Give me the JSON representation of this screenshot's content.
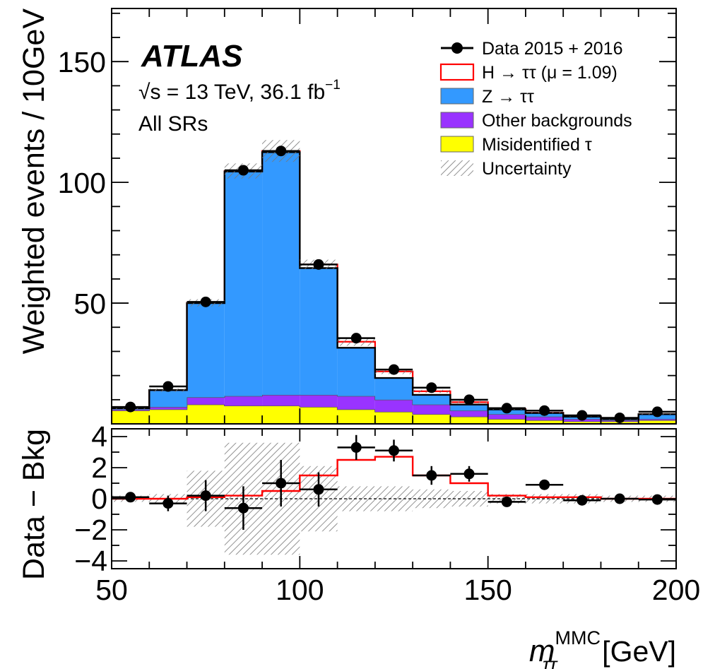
{
  "chart_data": [
    {
      "type": "bar",
      "stacked": true,
      "panel": "main",
      "bin_edges": [
        50,
        60,
        70,
        80,
        90,
        100,
        110,
        120,
        130,
        140,
        150,
        160,
        170,
        180,
        190,
        200
      ],
      "series": [
        {
          "name": "Misidentified τ",
          "color": "#ffff00",
          "values": [
            5.5,
            6.0,
            8.0,
            7.5,
            7.5,
            7.0,
            6.0,
            5.0,
            4.0,
            3.0,
            2.0,
            1.5,
            1.0,
            1.0,
            1.5
          ]
        },
        {
          "name": "Other backgrounds",
          "color": "#9933ff",
          "values": [
            0.5,
            1.0,
            3.0,
            4.0,
            4.5,
            5.0,
            5.5,
            5.0,
            4.0,
            2.5,
            2.0,
            1.5,
            1.0,
            0.5,
            0.5
          ]
        },
        {
          "name": "Z → ττ",
          "color": "#3399ff",
          "values": [
            0.5,
            7.0,
            39.0,
            93.0,
            100.5,
            52.5,
            20.0,
            9.0,
            4.0,
            2.5,
            2.0,
            1.5,
            1.0,
            0.5,
            2.0
          ]
        },
        {
          "name": "H → ττ (μ = 1.09)",
          "color": "#ff0000",
          "style": "outline",
          "values": [
            0.0,
            0.0,
            0.1,
            0.2,
            0.5,
            1.5,
            2.5,
            2.7,
            1.5,
            1.0,
            0.2,
            0.1,
            0.1,
            0.0,
            0.0
          ]
        }
      ],
      "data_series": {
        "name": "Data 2015 + 2016",
        "x": [
          55,
          65,
          75,
          85,
          95,
          105,
          115,
          125,
          135,
          145,
          155,
          165,
          175,
          185,
          195
        ],
        "y": [
          7.0,
          15.5,
          50.5,
          105.0,
          113.0,
          66.0,
          35.5,
          22.5,
          15.0,
          10.0,
          6.5,
          5.5,
          3.5,
          2.5,
          5.0
        ]
      },
      "uncertainty": {
        "name": "Uncertainty",
        "rel": [
          0.05,
          0.05,
          0.03,
          0.03,
          0.04,
          0.03,
          0.05,
          0.05,
          0.05,
          0.05,
          0.05,
          0.05,
          0.05,
          0.05,
          0.05
        ]
      },
      "ylabel": "Weighted events / 10GeV",
      "xlim": [
        50,
        200
      ],
      "ylim": [
        0,
        172
      ],
      "yticks": [
        50,
        100,
        150
      ],
      "legend_position": "top-right"
    },
    {
      "type": "line",
      "panel": "ratio",
      "bin_edges": [
        50,
        60,
        70,
        80,
        90,
        100,
        110,
        120,
        130,
        140,
        150,
        160,
        170,
        180,
        190,
        200
      ],
      "signal": {
        "name": "H → ττ (μ = 1.09)",
        "color": "#ff0000",
        "values": [
          0.0,
          0.0,
          0.1,
          0.2,
          0.5,
          1.5,
          2.5,
          2.7,
          1.5,
          1.0,
          0.2,
          0.1,
          0.1,
          0.0,
          0.0
        ]
      },
      "data": {
        "x": [
          55,
          65,
          75,
          85,
          95,
          105,
          115,
          125,
          135,
          145,
          155,
          165,
          175,
          185,
          195
        ],
        "y": [
          0.1,
          -0.3,
          0.2,
          -0.6,
          1.0,
          0.6,
          3.3,
          3.1,
          1.5,
          1.6,
          -0.2,
          0.9,
          -0.1,
          0.0,
          -0.05
        ],
        "err": [
          0.3,
          0.5,
          1.0,
          1.4,
          1.5,
          1.1,
          0.8,
          0.7,
          0.6,
          0.5,
          0.2,
          0.2,
          0.15,
          0.15,
          0.1
        ]
      },
      "band_halfwidth": [
        0.2,
        0.3,
        1.8,
        3.6,
        3.6,
        2.1,
        0.8,
        0.8,
        0.6,
        0.5,
        0.3,
        0.3,
        0.3,
        0.2,
        0.2
      ],
      "ylabel": "Data − Bkg",
      "xlabel_main": "m",
      "xlabel_sup": "MMC",
      "xlabel_sub": "ττ",
      "xlabel_unit": "[GeV]",
      "xlim": [
        50,
        200
      ],
      "ylim": [
        -4.5,
        4.5
      ],
      "yticks": [
        -4,
        -2,
        0,
        2,
        4
      ],
      "xticks": [
        50,
        100,
        150,
        200
      ]
    }
  ],
  "annotations": {
    "experiment": "ATLAS",
    "energy_prefix": "√s = 13 TeV, 36.1 fb",
    "energy_sup": "−1",
    "region": "All SRs"
  },
  "legend": [
    {
      "label": "Data 2015 + 2016",
      "style": "marker"
    },
    {
      "label": "H → ττ (μ = 1.09)",
      "style": "outline",
      "color": "#ff0000"
    },
    {
      "label": "Z → ττ",
      "style": "fill",
      "color": "#3399ff"
    },
    {
      "label": "Other backgrounds",
      "style": "fill",
      "color": "#9933ff"
    },
    {
      "label": "Misidentified τ",
      "style": "fill",
      "color": "#ffff00"
    },
    {
      "label": "Uncertainty",
      "style": "hatch"
    }
  ]
}
